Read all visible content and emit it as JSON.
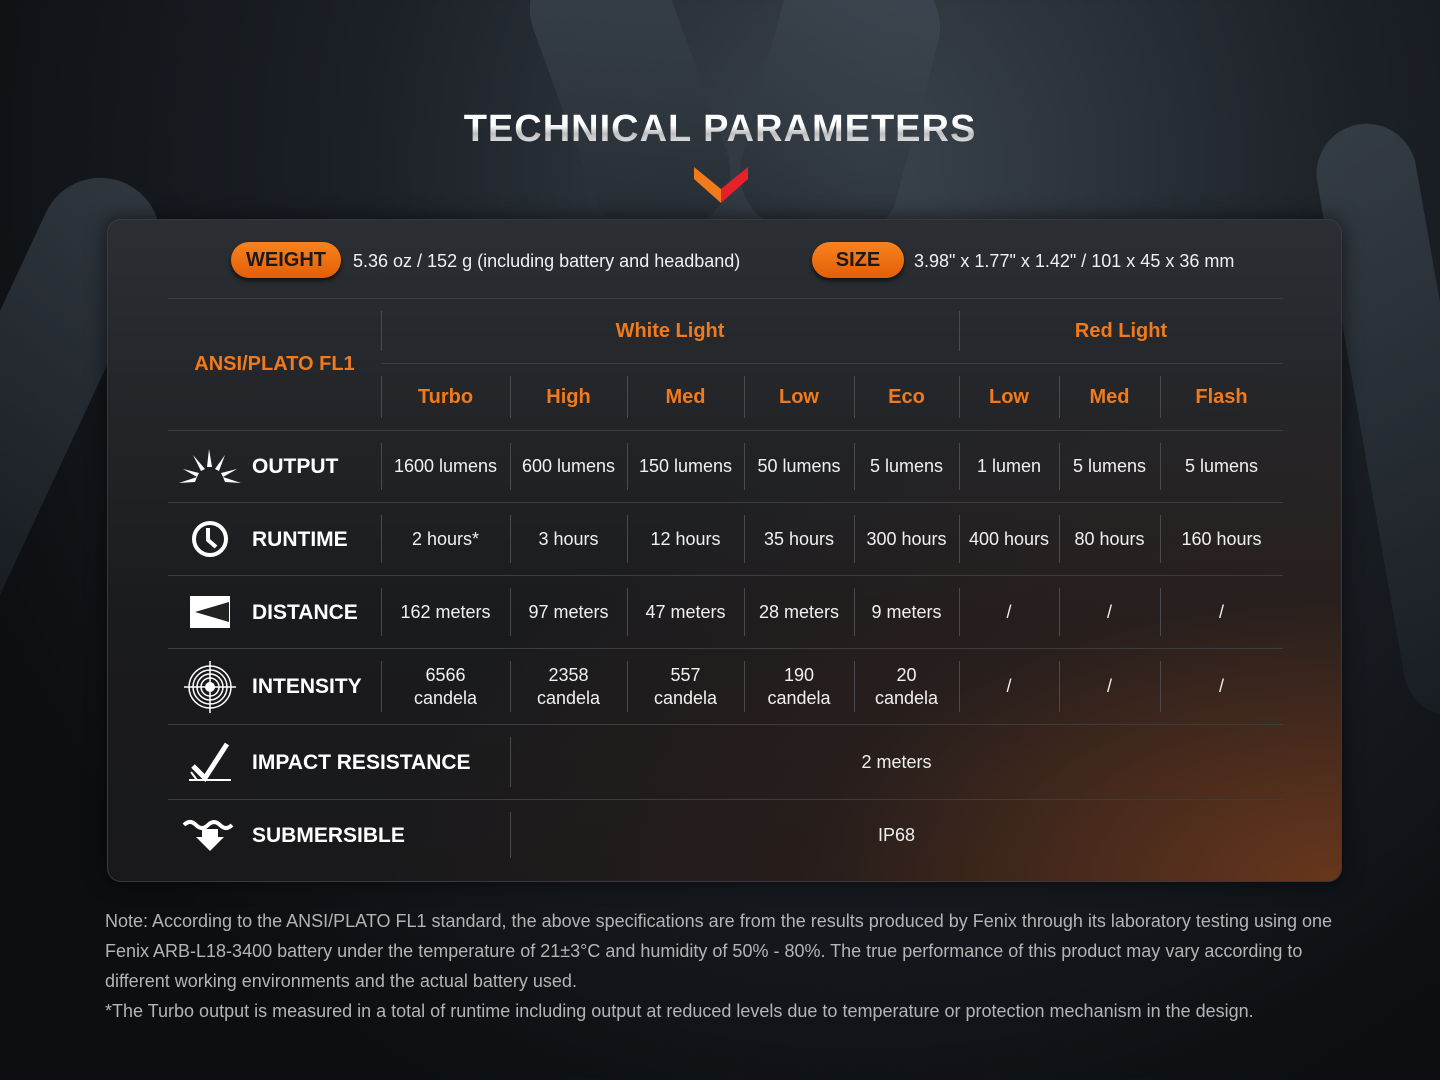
{
  "title": "TECHNICAL PARAMETERS",
  "colors": {
    "accent_orange": "#f07a1c",
    "chevron_red": "#e8202a"
  },
  "weight": {
    "label": "WEIGHT",
    "value": "5.36 oz / 152 g (including battery and headband)"
  },
  "size": {
    "label": "SIZE",
    "value": "3.98\" x 1.77\" x 1.42\" / 101 x 45 x 36 mm"
  },
  "table": {
    "standard": "ANSI/PLATO FL1",
    "groups": [
      "White Light",
      "Red Light"
    ],
    "modes": [
      "Turbo",
      "High",
      "Med",
      "Low",
      "Eco",
      "Low",
      "Med",
      "Flash"
    ],
    "rows": [
      {
        "label": "OUTPUT",
        "icon": "sun-rays-icon",
        "values": [
          "1600 lumens",
          "600 lumens",
          "150 lumens",
          "50 lumens",
          "5 lumens",
          "1 lumen",
          "5 lumens",
          "5 lumens"
        ]
      },
      {
        "label": "RUNTIME",
        "icon": "clock-icon",
        "values": [
          "2 hours*",
          "3 hours",
          "12 hours",
          "35 hours",
          "300 hours",
          "400 hours",
          "80 hours",
          "160 hours"
        ]
      },
      {
        "label": "DISTANCE",
        "icon": "beam-distance-icon",
        "values": [
          "162 meters",
          "97 meters",
          "47 meters",
          "28 meters",
          "9 meters",
          "/",
          "/",
          "/"
        ]
      },
      {
        "label": "INTENSITY",
        "icon": "target-icon",
        "values": [
          [
            "6566",
            "candela"
          ],
          [
            "2358",
            "candela"
          ],
          [
            "557",
            "candela"
          ],
          [
            "190",
            "candela"
          ],
          [
            "20",
            "candela"
          ],
          "/",
          "/",
          "/"
        ]
      },
      {
        "label": "IMPACT RESISTANCE",
        "icon": "impact-check-icon",
        "value": "2 meters"
      },
      {
        "label": "SUBMERSIBLE",
        "icon": "submersible-icon",
        "value": "IP68"
      }
    ]
  },
  "note": [
    "Note: According to the ANSI/PLATO FL1 standard, the above specifications are from the results produced by Fenix through its laboratory testing using one Fenix ARB-L18-3400 battery under the temperature of 21±3°C and humidity of 50% - 80%. The true performance of this product may vary according to different working environments and the actual battery used.",
    "*The Turbo output is measured in a total of runtime including output at reduced levels due to temperature or protection mechanism in the design."
  ]
}
